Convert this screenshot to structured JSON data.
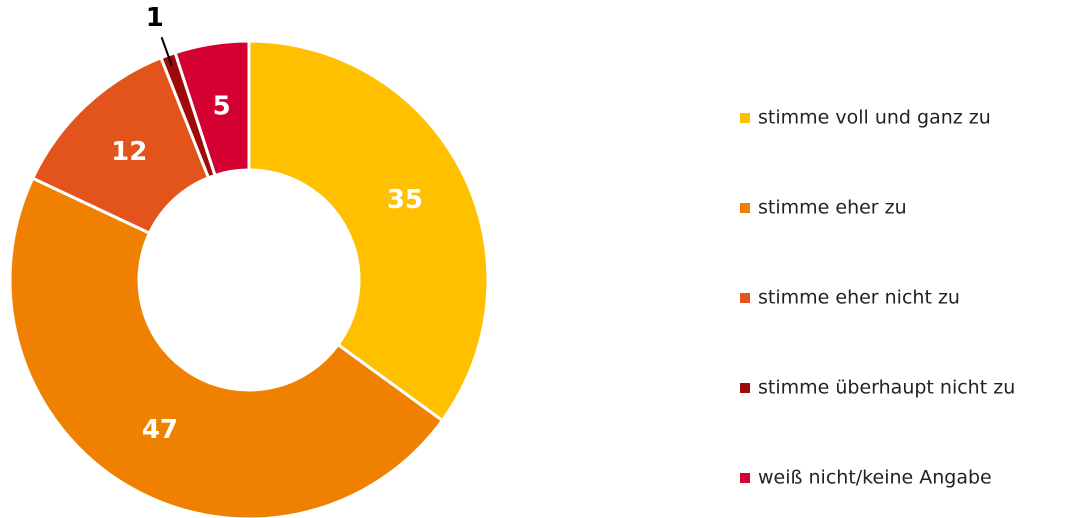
{
  "chart_data": {
    "type": "donut",
    "categories": [
      "stimme voll und ganz zu",
      "stimme eher zu",
      "stimme eher nicht zu",
      "stimme überhaupt nicht zu",
      "weiß nicht/keine Angabe"
    ],
    "values": [
      35,
      47,
      12,
      1,
      5
    ],
    "colors": [
      "#FFC000",
      "#F08000",
      "#E2541B",
      "#9E0A0A",
      "#D50032"
    ],
    "legend": "right"
  }
}
